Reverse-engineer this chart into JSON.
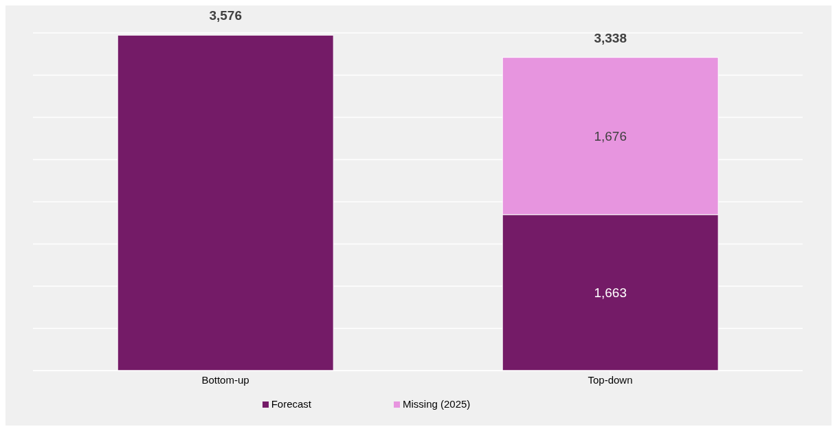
{
  "chart_data": {
    "type": "bar",
    "stacked": true,
    "categories": [
      "Bottom-up",
      "Top-down"
    ],
    "series": [
      {
        "name": "Forecast",
        "color": "#741b67",
        "values": [
          3576,
          1663
        ],
        "value_labels": [
          null,
          "1,663"
        ]
      },
      {
        "name": "Missing (2025)",
        "color": "#e795df",
        "values": [
          null,
          1676
        ],
        "value_labels": [
          null,
          "1,676"
        ]
      }
    ],
    "totals": [
      "3,576",
      "3,338"
    ],
    "tick_labels": "x",
    "grid": "y",
    "legend": "bottom"
  }
}
